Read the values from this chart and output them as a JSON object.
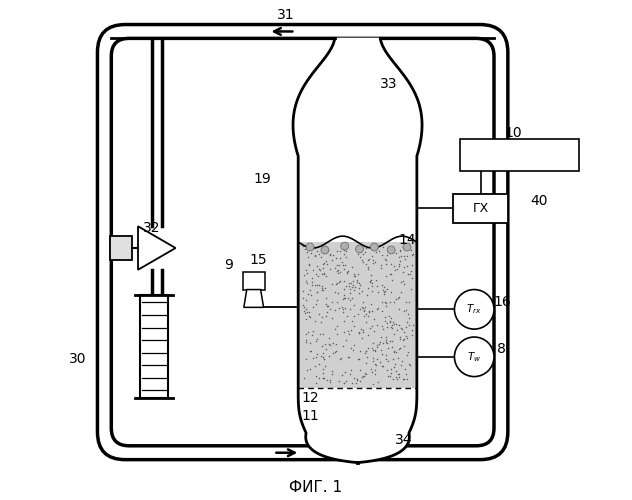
{
  "title": "ФИГ. 1",
  "bg": "#ffffff",
  "pipe_outer_lw": 2.5,
  "pipe_inner_lw": 2.5,
  "vessel_lw": 2.0
}
